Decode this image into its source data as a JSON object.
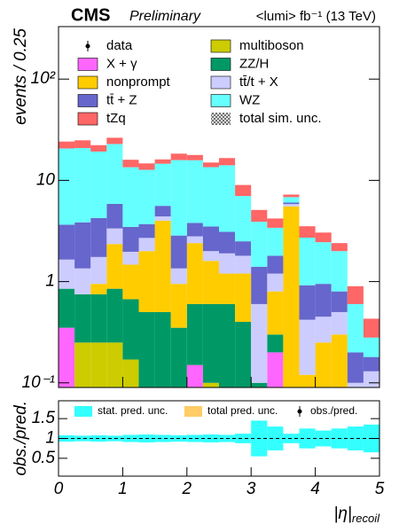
{
  "chart_data": [
    {
      "type": "stacked_histogram",
      "cms": "CMS",
      "preliminary": "Preliminary",
      "lumi": "<lumi> fb⁻¹ (13 TeV)",
      "y_label": "events / 0.25",
      "log_scale": true,
      "bins": [
        0,
        0.25,
        0.5,
        0.75,
        1,
        1.25,
        1.5,
        1.75,
        2,
        2.25,
        2.5,
        2.75,
        3,
        3.25,
        3.5,
        3.75,
        4,
        4.25,
        4.5,
        4.75,
        5
      ],
      "xlim": [
        0,
        5
      ],
      "ylim": [
        0.09,
        330
      ],
      "yticks": [
        {
          "value": 0.1,
          "label": "10⁻¹"
        },
        1,
        10,
        {
          "value": 100,
          "label": "10²"
        }
      ],
      "series": [
        {
          "name": "multiboson",
          "color": "#cccc00",
          "values": [
            0,
            0.25,
            0.25,
            0.25,
            0.17,
            0,
            0,
            0,
            0.05,
            0.1,
            0,
            0,
            0,
            0,
            0,
            0,
            0,
            0,
            0,
            0
          ]
        },
        {
          "name": "X +  γ",
          "color": "#ff66ff",
          "values": [
            0.35,
            0,
            0,
            0,
            0,
            0,
            0,
            0,
            0.1,
            0,
            0,
            0,
            0,
            0.2,
            0,
            0,
            0,
            0,
            0,
            0
          ]
        },
        {
          "name": "ZZ/H",
          "color": "#009966",
          "values": [
            0.5,
            0.5,
            0.5,
            0.6,
            0.5,
            0.5,
            0.5,
            0.35,
            0.45,
            0.5,
            0.6,
            0.4,
            0.1,
            0.1,
            0.03,
            0.02,
            0.05,
            0,
            0,
            0
          ]
        },
        {
          "name": "nonprompt",
          "color": "#ffcc00",
          "values": [
            0,
            0,
            0.2,
            1.5,
            0.8,
            1.5,
            3.5,
            0.6,
            1.8,
            1.0,
            0.6,
            0.8,
            0,
            0.5,
            5.5,
            0.1,
            0.2,
            0.3,
            0,
            0
          ]
        },
        {
          "name": "tt̄/t + X",
          "color": "#ccccff",
          "values": [
            0.8,
            0.6,
            0.8,
            1.0,
            0.5,
            0.7,
            0.4,
            0.4,
            0.4,
            0.4,
            0.7,
            0.6,
            0.5,
            0.4,
            0.3,
            0.3,
            0.2,
            0.2,
            0.1,
            0.13
          ]
        },
        {
          "name": "tt̄ + Z",
          "color": "#6666cc",
          "values": [
            2.0,
            2.5,
            2.5,
            2.5,
            1.5,
            1.0,
            1.2,
            1.5,
            1.0,
            1.5,
            1.2,
            0.7,
            0.8,
            0.6,
            0.2,
            0.5,
            0.5,
            0.3,
            0.1,
            0.05
          ]
        },
        {
          "name": "WZ",
          "color": "#66ffff",
          "values": [
            17,
            17,
            15,
            17,
            10,
            9,
            9,
            13,
            12,
            10,
            11,
            4.5,
            2.5,
            1.6,
            0.8,
            1.8,
            1.5,
            1.2,
            0.4,
            0.1
          ]
        },
        {
          "name": "tZq",
          "color": "#ff6666",
          "values": [
            3.5,
            4,
            3,
            3.5,
            2.5,
            2,
            1.5,
            2.5,
            2.0,
            1.5,
            2.5,
            2,
            1.2,
            0.8,
            0.4,
            0.8,
            0.6,
            0.4,
            0.3,
            0.15
          ]
        }
      ],
      "legend_extra": [
        "data",
        "total sim. unc."
      ]
    },
    {
      "type": "ratio_band",
      "y_label": "obs./pred.",
      "x_label": "|η|",
      "x_label_sub": "recoil",
      "xlim": [
        0,
        5
      ],
      "xticks": [
        0,
        1,
        2,
        3,
        4,
        5
      ],
      "ylim": [
        0.05,
        1.95
      ],
      "yticks": [
        0.5,
        1,
        1.5
      ],
      "reference": 1,
      "stat_color": "#33ffff",
      "total_color": "#ffcc66",
      "stat_unc": [
        0.08,
        0.07,
        0.08,
        0.07,
        0.09,
        0.1,
        0.09,
        0.08,
        0.09,
        0.1,
        0.09,
        0.12,
        0.45,
        0.3,
        0.12,
        0.25,
        0.2,
        0.25,
        0.3,
        0.35
      ],
      "legend": [
        "stat. pred. unc.",
        "total pred. unc.",
        "obs./pred."
      ]
    }
  ]
}
